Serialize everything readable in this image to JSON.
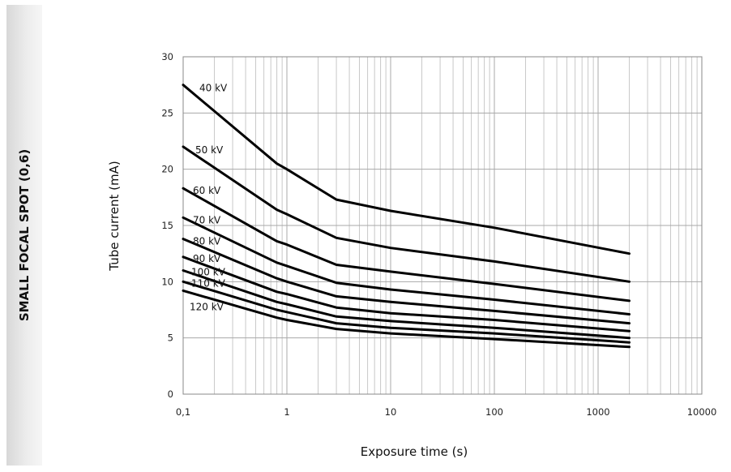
{
  "side_label": "SMALL FOCAL SPOT (0,6)",
  "chart_data": {
    "type": "line",
    "title": "",
    "xlabel": "Exposure time (s)",
    "ylabel": "Tube current (mA)",
    "xscale": "log",
    "xlim": [
      0.1,
      10000
    ],
    "ylim": [
      0,
      30
    ],
    "grid": true,
    "line_color": "#000000",
    "x_tick_labels": [
      "0,1",
      "1",
      "10",
      "100",
      "1000",
      "10000"
    ],
    "x_tick_values": [
      0.1,
      1,
      10,
      100,
      1000,
      10000
    ],
    "y_tick_values": [
      0,
      5,
      10,
      15,
      20,
      25,
      30
    ],
    "series": [
      {
        "name": "40 kV",
        "x": [
          0.1,
          0.8,
          1,
          3,
          10,
          100,
          2000
        ],
        "y": [
          27.5,
          20.5,
          20.0,
          17.3,
          16.3,
          14.8,
          12.5
        ]
      },
      {
        "name": "50 kV",
        "x": [
          0.1,
          0.8,
          1,
          3,
          10,
          100,
          2000
        ],
        "y": [
          22.0,
          16.4,
          16.0,
          13.9,
          13.0,
          11.8,
          10.0
        ]
      },
      {
        "name": "60 kV",
        "x": [
          0.1,
          0.8,
          1,
          3,
          10,
          100,
          2000
        ],
        "y": [
          18.3,
          13.6,
          13.3,
          11.5,
          10.9,
          9.8,
          8.3
        ]
      },
      {
        "name": "70 kV",
        "x": [
          0.1,
          0.8,
          1,
          3,
          10,
          100,
          2000
        ],
        "y": [
          15.7,
          11.7,
          11.4,
          9.9,
          9.3,
          8.4,
          7.1
        ]
      },
      {
        "name": "80 kV",
        "x": [
          0.1,
          0.8,
          1,
          3,
          10,
          100,
          2000
        ],
        "y": [
          13.8,
          10.3,
          10.0,
          8.7,
          8.2,
          7.4,
          6.3
        ]
      },
      {
        "name": "90 kV",
        "x": [
          0.1,
          0.8,
          1,
          3,
          10,
          100,
          2000
        ],
        "y": [
          12.2,
          9.1,
          8.9,
          7.7,
          7.2,
          6.6,
          5.6
        ]
      },
      {
        "name": "100 kV",
        "x": [
          0.1,
          0.8,
          1,
          3,
          10,
          100,
          2000
        ],
        "y": [
          11.0,
          8.2,
          8.0,
          6.9,
          6.5,
          5.9,
          5.0
        ]
      },
      {
        "name": "110 kV",
        "x": [
          0.1,
          0.8,
          1,
          3,
          10,
          100,
          2000
        ],
        "y": [
          10.0,
          7.5,
          7.3,
          6.3,
          5.9,
          5.4,
          4.6
        ]
      },
      {
        "name": "120 kV",
        "x": [
          0.1,
          0.8,
          1,
          3,
          10,
          100,
          2000
        ],
        "y": [
          9.2,
          6.8,
          6.6,
          5.8,
          5.4,
          4.9,
          4.2
        ]
      }
    ]
  }
}
